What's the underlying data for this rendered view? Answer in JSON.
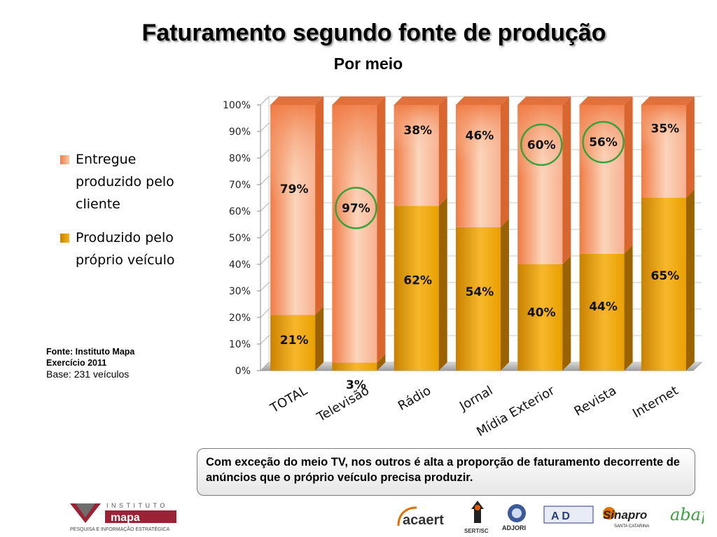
{
  "title": "Faturamento segundo fonte de produção",
  "subtitle": "Por meio",
  "legend": [
    {
      "label_lines": [
        "Entregue",
        "produzido pelo",
        "cliente"
      ]
    },
    {
      "label_lines": [
        "Produzido pelo",
        "próprio veículo"
      ]
    }
  ],
  "source": {
    "line1": "Fonte: Instituto Mapa",
    "line2": "Exercício 2011",
    "line3": "Base: 231 veículos"
  },
  "note": "Com exceção do meio TV, nos outros é alta a proporção de faturamento decorrente de anúncios que o próprio veículo precisa produzir.",
  "logos": {
    "mapa_top": "INSTITUTO",
    "mapa_name": "mapa",
    "mapa_tagline": "PESQUISA E INFORMAÇÃO ESTRATÉGICA",
    "acaert": "acaert",
    "sert": "SERT/SC",
    "adjori": "ADJORI",
    "ad": "A D",
    "sinapro": "Sinapro",
    "sinapro_sub": "SANTA CATARINA",
    "abap": "abap"
  },
  "colors": {
    "upper_dark": "#f07b45",
    "upper_light": "#fbd5bb",
    "lower_dark": "#c98200",
    "lower_light": "#f7b72c",
    "circle": "#3aa23a"
  },
  "chart_data": {
    "type": "bar",
    "stacked": true,
    "categories": [
      "TOTAL",
      "Televisão",
      "Rádio",
      "Jornal",
      "Mídia Exterior",
      "Revista",
      "Internet"
    ],
    "series": [
      {
        "name": "Produzido pelo próprio veículo",
        "values": [
          21,
          3,
          62,
          54,
          40,
          44,
          65
        ]
      },
      {
        "name": "Entregue produzido pelo cliente",
        "values": [
          79,
          97,
          38,
          46,
          60,
          56,
          35
        ]
      }
    ],
    "value_suffix": "%",
    "yticks": [
      "0%",
      "10%",
      "20%",
      "30%",
      "40%",
      "50%",
      "60%",
      "70%",
      "80%",
      "90%",
      "100%"
    ],
    "ylim": [
      0,
      100
    ],
    "grid": true,
    "legend_position": "left",
    "highlighted_labels": [
      {
        "category": "Televisão",
        "value": 97
      },
      {
        "category": "Mídia Exterior",
        "value": 60
      },
      {
        "category": "Revista",
        "value": 56
      }
    ]
  }
}
